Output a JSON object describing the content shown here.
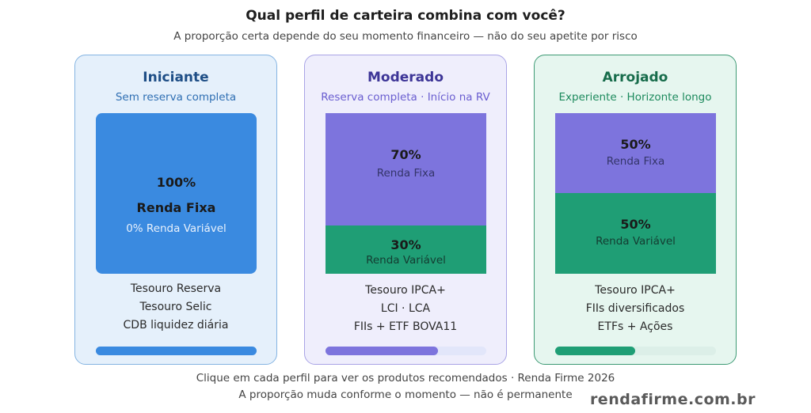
{
  "header": {
    "title": "Qual perfil de carteira combina com você?",
    "subtitle": "A proporção certa depende do seu momento financeiro — não do seu apetite por risco"
  },
  "profiles": [
    {
      "name": "Iniciante",
      "subtitle": "Sem reserva completa",
      "allocation": {
        "pct": "100%",
        "label": "Renda Fixa",
        "note": "0% Renda Variável",
        "fixed_income_share": 1.0
      },
      "products": [
        "Tesouro Reserva",
        "Tesouro Selic",
        "CDB liquidez diária"
      ],
      "bar_progress": 1.0,
      "colors": {
        "accent": "#3a8ae0",
        "background": "#e5f0fb"
      }
    },
    {
      "name": "Moderado",
      "subtitle": "Reserva completa · Início na RV",
      "allocation": {
        "fixed": {
          "pct": "70%",
          "label": "Renda Fixa",
          "share": 0.7
        },
        "variable": {
          "pct": "30%",
          "label": "Renda Variável",
          "share": 0.3
        }
      },
      "products": [
        "Tesouro IPCA+",
        "LCI · LCA",
        "FIIs + ETF BOVA11"
      ],
      "bar_progress": 0.7,
      "colors": {
        "fixed": "#7d74dd",
        "variable": "#1f9e75",
        "background": "#efeefc"
      }
    },
    {
      "name": "Arrojado",
      "subtitle": "Experiente · Horizonte longo",
      "allocation": {
        "fixed": {
          "pct": "50%",
          "label": "Renda Fixa",
          "share": 0.5
        },
        "variable": {
          "pct": "50%",
          "label": "Renda Variável",
          "share": 0.5
        }
      },
      "products": [
        "Tesouro IPCA+",
        "FIIs diversificados",
        "ETFs + Ações"
      ],
      "bar_progress": 0.5,
      "colors": {
        "fixed": "#7d74dd",
        "variable": "#1f9e75",
        "background": "#e6f6ef"
      }
    }
  ],
  "footer": {
    "line1": "Clique em cada perfil para ver os produtos recomendados · Renda Firme 2026",
    "line2": "A proporção muda conforme o momento — não é permanente",
    "brand": "rendafirme.com.br"
  }
}
